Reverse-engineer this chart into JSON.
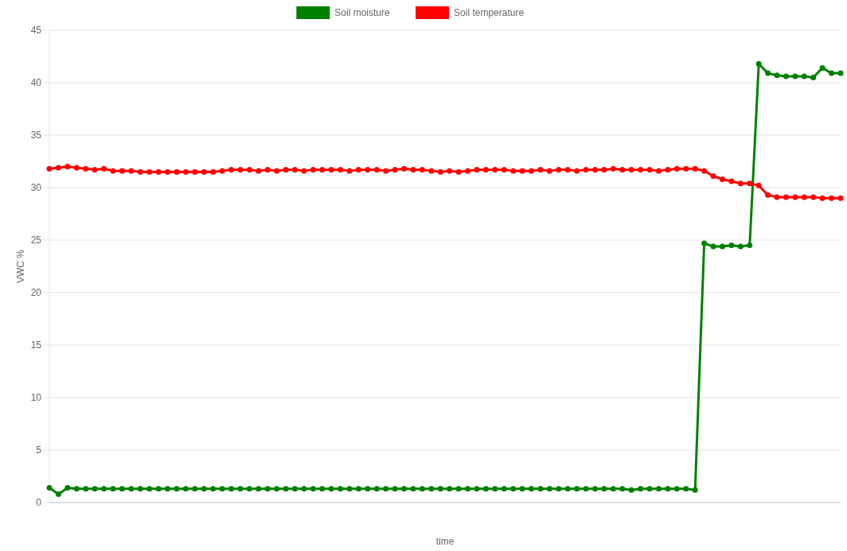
{
  "chart_data": {
    "type": "line",
    "xlabel": "time",
    "ylabel": "VWC %",
    "categories": [
      null,
      null,
      null,
      null,
      null,
      null,
      null,
      null,
      null,
      null,
      null,
      null,
      null,
      null,
      null,
      null,
      null,
      null,
      null,
      null,
      null,
      null,
      null,
      null,
      null,
      null,
      null,
      null,
      null,
      null,
      null,
      null,
      null,
      null,
      null,
      null,
      null,
      null,
      null,
      null,
      null,
      null,
      null,
      null,
      null,
      null,
      null,
      null,
      null,
      null,
      null,
      null,
      null,
      null,
      null,
      null,
      null,
      null,
      null,
      null,
      null,
      null,
      null,
      null,
      null,
      null,
      null,
      null,
      null,
      null,
      null,
      null,
      null,
      null,
      null,
      null,
      null,
      null,
      null,
      null,
      null,
      null,
      null,
      null,
      null,
      null,
      null,
      null
    ],
    "series": [
      {
        "name": "Soil moisture",
        "color": "#008000",
        "values": [
          1.4,
          0.8,
          1.4,
          1.3,
          1.3,
          1.3,
          1.3,
          1.3,
          1.3,
          1.3,
          1.3,
          1.3,
          1.3,
          1.3,
          1.3,
          1.3,
          1.3,
          1.3,
          1.3,
          1.3,
          1.3,
          1.3,
          1.3,
          1.3,
          1.3,
          1.3,
          1.3,
          1.3,
          1.3,
          1.3,
          1.3,
          1.3,
          1.3,
          1.3,
          1.3,
          1.3,
          1.3,
          1.3,
          1.3,
          1.3,
          1.3,
          1.3,
          1.3,
          1.3,
          1.3,
          1.3,
          1.3,
          1.3,
          1.3,
          1.3,
          1.3,
          1.3,
          1.3,
          1.3,
          1.3,
          1.3,
          1.3,
          1.3,
          1.3,
          1.3,
          1.3,
          1.3,
          1.3,
          1.3,
          1.2,
          1.3,
          1.3,
          1.3,
          1.3,
          1.3,
          1.3,
          1.2,
          24.7,
          24.4,
          24.4,
          24.5,
          24.4,
          24.5,
          41.8,
          40.9,
          40.7,
          40.6,
          40.6,
          40.6,
          40.5,
          41.4,
          40.9,
          40.9
        ]
      },
      {
        "name": "Soil temperature",
        "color": "#ff0000",
        "values": [
          31.8,
          31.9,
          32.0,
          31.9,
          31.8,
          31.7,
          31.8,
          31.6,
          31.6,
          31.6,
          31.5,
          31.5,
          31.5,
          31.5,
          31.5,
          31.5,
          31.5,
          31.5,
          31.5,
          31.6,
          31.7,
          31.7,
          31.7,
          31.6,
          31.7,
          31.6,
          31.7,
          31.7,
          31.6,
          31.7,
          31.7,
          31.7,
          31.7,
          31.6,
          31.7,
          31.7,
          31.7,
          31.6,
          31.7,
          31.8,
          31.7,
          31.7,
          31.6,
          31.5,
          31.6,
          31.5,
          31.6,
          31.7,
          31.7,
          31.7,
          31.7,
          31.6,
          31.6,
          31.6,
          31.7,
          31.6,
          31.7,
          31.7,
          31.6,
          31.7,
          31.7,
          31.7,
          31.8,
          31.7,
          31.7,
          31.7,
          31.7,
          31.6,
          31.7,
          31.8,
          31.8,
          31.8,
          31.6,
          31.1,
          30.8,
          30.6,
          30.4,
          30.4,
          30.2,
          29.3,
          29.1,
          29.1,
          29.1,
          29.1,
          29.1,
          29.0,
          29.0,
          29.0
        ]
      }
    ],
    "ylim": [
      0,
      45
    ],
    "yticks": [
      0,
      5,
      10,
      15,
      20,
      25,
      30,
      35,
      40,
      45
    ],
    "grid": "y",
    "legend": "top",
    "marker": "circle",
    "line_style": "solid"
  }
}
